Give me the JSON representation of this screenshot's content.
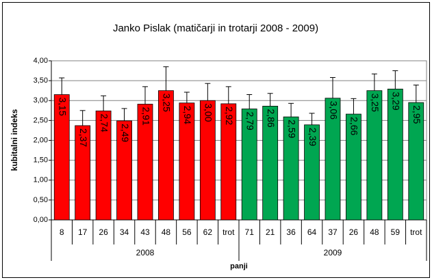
{
  "chart_data": {
    "type": "bar",
    "title": "Janko Pislak (matičarji in trotarji 2008 - 2009)",
    "y_label": "kubitalni indeks",
    "x_label": "panji",
    "ylim": [
      0,
      4
    ],
    "yticks": [
      {
        "value": 0,
        "label": "0,00"
      },
      {
        "value": 0.5,
        "label": "0,50"
      },
      {
        "value": 1,
        "label": "1,00"
      },
      {
        "value": 1.5,
        "label": "1,50"
      },
      {
        "value": 2,
        "label": "2,00"
      },
      {
        "value": 2.5,
        "label": "2,50"
      },
      {
        "value": 3,
        "label": "3,00"
      },
      {
        "value": 3.5,
        "label": "3,50"
      },
      {
        "value": 4,
        "label": "4,00"
      }
    ],
    "grid": true,
    "series": [
      {
        "name": "2008",
        "color": "#ff0000",
        "categories": [
          "8",
          "17",
          "26",
          "34",
          "43",
          "48",
          "56",
          "62",
          "trot"
        ],
        "values": [
          3.15,
          2.37,
          2.74,
          2.49,
          2.91,
          3.25,
          2.94,
          3.0,
          2.92
        ],
        "value_labels": [
          "3,15",
          "2,37",
          "2,74",
          "2,49",
          "2,91",
          "3,25",
          "2,94",
          "3,00",
          "2,92"
        ],
        "errors": [
          0.42,
          0.38,
          0.38,
          0.31,
          0.44,
          0.6,
          0.27,
          0.43,
          0.43
        ]
      },
      {
        "name": "2009",
        "color": "#00a651",
        "categories": [
          "71",
          "21",
          "36",
          "64",
          "37",
          "26",
          "48",
          "59",
          "trot"
        ],
        "values": [
          2.79,
          2.86,
          2.59,
          2.39,
          3.06,
          2.66,
          3.25,
          3.29,
          2.95
        ],
        "value_labels": [
          "2,79",
          "2,86",
          "2,59",
          "2,39",
          "3,06",
          "2,66",
          "3,25",
          "3,29",
          "2,95"
        ],
        "errors": [
          0.36,
          0.32,
          0.34,
          0.29,
          0.52,
          0.39,
          0.42,
          0.46,
          0.44
        ]
      }
    ]
  }
}
